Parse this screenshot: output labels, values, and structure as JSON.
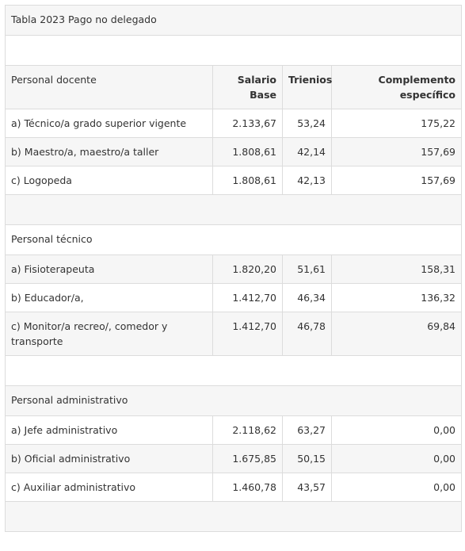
{
  "table_title": "Tabla 2023 Pago no delegado",
  "headers": {
    "category": "Personal docente",
    "salary_line1": "Salario",
    "salary_line2": "Base",
    "trienios": "Trienios",
    "complement_line1": "Complemento",
    "complement_line2": "específico"
  },
  "docente_rows": [
    {
      "label": "a) Técnico/a grado superior vigente",
      "salario": "2.133,67",
      "trienios": "53,24",
      "complemento": "175,22"
    },
    {
      "label": "b) Maestro/a, maestro/a taller",
      "salario": "1.808,61",
      "trienios": "42,14",
      "complemento": "157,69"
    },
    {
      "label": "c) Logopeda",
      "salario": "1.808,61",
      "trienios": "42,13",
      "complemento": "157,69"
    }
  ],
  "tecnico_section": "Personal técnico",
  "tecnico_rows": [
    {
      "label": "a) Fisioterapeuta",
      "salario": "1.820,20",
      "trienios": "51,61",
      "complemento": "158,31"
    },
    {
      "label": "b) Educador/a,",
      "salario": "1.412,70",
      "trienios": "46,34",
      "complemento": "136,32"
    },
    {
      "label_line1": "c) Monitor/a recreo/, comedor y",
      "label_line2": "transporte",
      "salario": "1.412,70",
      "trienios": "46,78",
      "complemento": "69,84"
    }
  ],
  "admin_section": "Personal administrativo",
  "admin_rows": [
    {
      "label": "a) Jefe administrativo",
      "salario": "2.118,62",
      "trienios": "63,27",
      "complemento": "0,00"
    },
    {
      "label": "b) Oficial administrativo",
      "salario": "1.675,85",
      "trienios": "50,15",
      "complemento": "0,00"
    },
    {
      "label": "c) Auxiliar administrativo",
      "salario": "1.460,78",
      "trienios": "43,57",
      "complemento": "0,00"
    }
  ]
}
